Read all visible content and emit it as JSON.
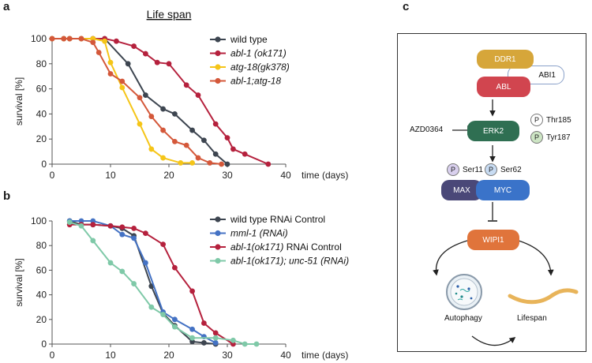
{
  "panels": {
    "a": "a",
    "b": "b",
    "c": "c"
  },
  "chart_data": [
    {
      "type": "line",
      "panel": "a",
      "title": "Life span",
      "xlabel": "time (days)",
      "ylabel": "survival [%]",
      "xlim": [
        0,
        40
      ],
      "ylim": [
        0,
        100
      ],
      "xticks": [
        0,
        10,
        20,
        30,
        40
      ],
      "yticks": [
        0,
        20,
        40,
        60,
        80,
        100
      ],
      "series": [
        {
          "name": "wild type",
          "italic": false,
          "color": "#3d4550",
          "x": [
            0,
            2,
            3,
            5,
            7,
            9,
            13,
            16,
            19,
            21,
            24,
            26,
            28,
            30
          ],
          "y": [
            100,
            100,
            100,
            100,
            100,
            100,
            80,
            55,
            44,
            40,
            27,
            19,
            8,
            0
          ]
        },
        {
          "name": "abl-1 (ok171)",
          "italic": true,
          "color": "#b5213d",
          "x": [
            0,
            2,
            3,
            5,
            7,
            9,
            11,
            14,
            16,
            18,
            20,
            23,
            25,
            28,
            30,
            31,
            33,
            37
          ],
          "y": [
            100,
            100,
            100,
            100,
            100,
            100,
            98,
            94,
            88,
            81,
            80,
            63,
            55,
            32,
            21,
            12,
            8,
            0
          ]
        },
        {
          "name": "atg-18(gk378)",
          "italic": true,
          "color": "#f5c518",
          "x": [
            0,
            2,
            3,
            5,
            7,
            9,
            10,
            12,
            15,
            17,
            19,
            22,
            24
          ],
          "y": [
            100,
            100,
            100,
            100,
            100,
            98,
            81,
            61,
            32,
            12,
            5,
            1,
            1
          ]
        },
        {
          "name": "abl-1;atg-18",
          "italic": true,
          "color": "#d4583a",
          "x": [
            0,
            2,
            3,
            5,
            7,
            8,
            10,
            12,
            15,
            17,
            19,
            21,
            23,
            25,
            27,
            29
          ],
          "y": [
            100,
            100,
            100,
            100,
            97,
            89,
            72,
            66,
            53,
            38,
            27,
            18,
            15,
            5,
            1,
            0
          ]
        }
      ]
    },
    {
      "type": "line",
      "panel": "b",
      "title": "",
      "xlabel": "time (days)",
      "ylabel": "survival [%]",
      "xlim": [
        0,
        40
      ],
      "ylim": [
        0,
        100
      ],
      "xticks": [
        0,
        10,
        20,
        30,
        40
      ],
      "yticks": [
        0,
        20,
        40,
        60,
        80,
        100
      ],
      "series": [
        {
          "name": "wild type RNAi Control",
          "italic": false,
          "color": "#3d4550",
          "x": [
            3,
            5,
            7,
            10,
            12,
            14,
            17,
            19,
            21,
            24,
            26,
            28
          ],
          "y": [
            100,
            97,
            97,
            96,
            94,
            88,
            47,
            25,
            15,
            2,
            1,
            0
          ]
        },
        {
          "name": "mml-1 (RNAi)",
          "italic": true,
          "color": "#4472c4",
          "x": [
            3,
            5,
            7,
            10,
            12,
            14,
            16,
            19,
            21,
            24,
            26,
            28
          ],
          "y": [
            100,
            100,
            100,
            96,
            89,
            86,
            66,
            26,
            20,
            12,
            6,
            1
          ]
        },
        {
          "name": "abl-1(ok171) RNAi Control",
          "italic": "partial",
          "name_italic": "abl-1(ok171)",
          "name_plain": " RNAi Control",
          "color": "#b5213d",
          "x": [
            3,
            5,
            7,
            10,
            12,
            14,
            16,
            19,
            21,
            24,
            26,
            28,
            31
          ],
          "y": [
            97,
            97,
            97,
            96,
            95,
            94,
            90,
            81,
            62,
            43,
            17,
            9,
            0
          ]
        },
        {
          "name": "abl-1(ok171); unc-51 (RNAi)",
          "italic": true,
          "color": "#7fc9a8",
          "x": [
            3,
            5,
            7,
            10,
            12,
            14,
            17,
            19,
            21,
            24,
            28,
            31,
            33,
            35
          ],
          "y": [
            99,
            96,
            84,
            66,
            59,
            49,
            30,
            24,
            14,
            5,
            5,
            3,
            0,
            0
          ]
        }
      ]
    }
  ],
  "diagram": {
    "ddr1": "DDR1",
    "abl": "ABL",
    "abi1": "ABI1",
    "erk2": "ERK2",
    "azd": "AZD0364",
    "p": "P",
    "thr185": "Thr185",
    "tyr187": "Tyr187",
    "ser11": "Ser11",
    "ser62": "Ser62",
    "max": "MAX",
    "myc": "MYC",
    "wipi1": "WIPI1",
    "autophagy": "Autophagy",
    "lifespan": "Lifespan",
    "colors": {
      "ddr1": "#d6a63a",
      "abl": "#d1454f",
      "erk2": "#2f6f52",
      "max": "#4a4878",
      "myc": "#3a73c9",
      "wipi1": "#e0743b",
      "thr_p": "#ffffff",
      "tyr_p": "#cde5c4",
      "ser11_p": "#d9d0ee",
      "ser62_p": "#c8dcf3"
    }
  }
}
